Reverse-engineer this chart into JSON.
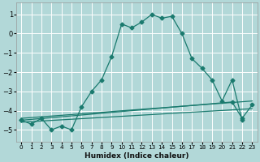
{
  "xlabel": "Humidex (Indice chaleur)",
  "background_color": "#b2d8d8",
  "grid_color": "#ffffff",
  "line_color": "#1a7a6e",
  "xlim": [
    -0.5,
    23.5
  ],
  "ylim": [
    -5.6,
    1.6
  ],
  "yticks": [
    -5,
    -4,
    -3,
    -2,
    -1,
    0,
    1
  ],
  "xticks": [
    0,
    1,
    2,
    3,
    4,
    5,
    6,
    7,
    8,
    9,
    10,
    11,
    12,
    13,
    14,
    15,
    16,
    17,
    18,
    19,
    20,
    21,
    22,
    23
  ],
  "curve_x": [
    0,
    1,
    2,
    3,
    4,
    5,
    6,
    7,
    8,
    9,
    10,
    11,
    12,
    13,
    14,
    15,
    16,
    17,
    18,
    19,
    20,
    21,
    22
  ],
  "curve_y": [
    -4.5,
    -4.7,
    -4.4,
    -5.0,
    -4.8,
    -5.0,
    -3.8,
    -3.0,
    -2.4,
    -1.2,
    0.5,
    0.3,
    0.6,
    1.0,
    0.8,
    0.9,
    0.0,
    -1.3,
    -1.8,
    -2.4,
    -3.5,
    -2.4,
    -4.5
  ],
  "line1_x": [
    0,
    23
  ],
  "line1_y": [
    -4.4,
    -3.5
  ],
  "line2_x": [
    0,
    23
  ],
  "line2_y": [
    -4.6,
    -3.9
  ],
  "line3_x": [
    0,
    21,
    22,
    23
  ],
  "line3_y": [
    -4.5,
    -3.55,
    -4.4,
    -3.7
  ]
}
